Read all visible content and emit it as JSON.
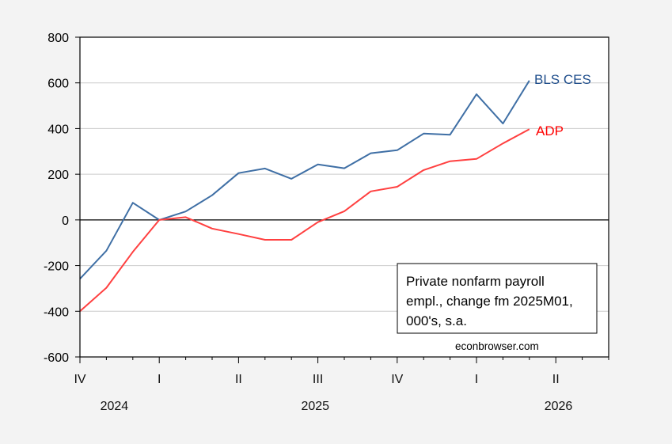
{
  "chart_data": {
    "type": "line",
    "title": "",
    "xlabel": "",
    "ylabel": "",
    "ylim": [
      -600,
      800
    ],
    "yticks": [
      -600,
      -400,
      -200,
      0,
      200,
      400,
      600,
      800
    ],
    "ytick_labels": [
      "-600",
      "-400",
      "-200",
      "0",
      "200",
      "400",
      "600",
      "800"
    ],
    "grid": true,
    "x": [
      "2024M10",
      "2024M11",
      "2024M12",
      "2025M01",
      "2025M02",
      "2025M03",
      "2025M04",
      "2025M05",
      "2025M06",
      "2025M07",
      "2025M08",
      "2025M09",
      "2025M10",
      "2025M11",
      "2025M12",
      "2026M01",
      "2026M02",
      "2026M03"
    ],
    "x_range_months": 20,
    "quarter_labels": [
      {
        "label": "IV",
        "month_index": 0
      },
      {
        "label": "I",
        "month_index": 3
      },
      {
        "label": "II",
        "month_index": 6
      },
      {
        "label": "III",
        "month_index": 9
      },
      {
        "label": "IV",
        "month_index": 12
      },
      {
        "label": "I",
        "month_index": 15
      },
      {
        "label": "II",
        "month_index": 18
      }
    ],
    "year_labels": [
      {
        "label": "2024",
        "month_index": 1.3
      },
      {
        "label": "2025",
        "month_index": 8.9
      },
      {
        "label": "2026",
        "month_index": 18.1
      }
    ],
    "series": [
      {
        "name": "BLS CES",
        "color": "#3f6fa5",
        "label_color": "#1f4e8c",
        "values": [
          -258,
          -135,
          75,
          0,
          37,
          108,
          205,
          225,
          180,
          243,
          226,
          292,
          305,
          378,
          373,
          550,
          422,
          610
        ]
      },
      {
        "name": "ADP",
        "color": "#ff4040",
        "label_color": "#ff0000",
        "values": [
          -400,
          -297,
          -140,
          0,
          12,
          -38,
          -62,
          -87,
          -87,
          -10,
          38,
          125,
          145,
          218,
          257,
          267,
          335,
          397
        ]
      }
    ],
    "annotation": [
      "Private nonfarm payroll",
      "empl., change fm 2025M01,",
      "000's, s.a."
    ],
    "watermark": "econbrowser.com"
  }
}
